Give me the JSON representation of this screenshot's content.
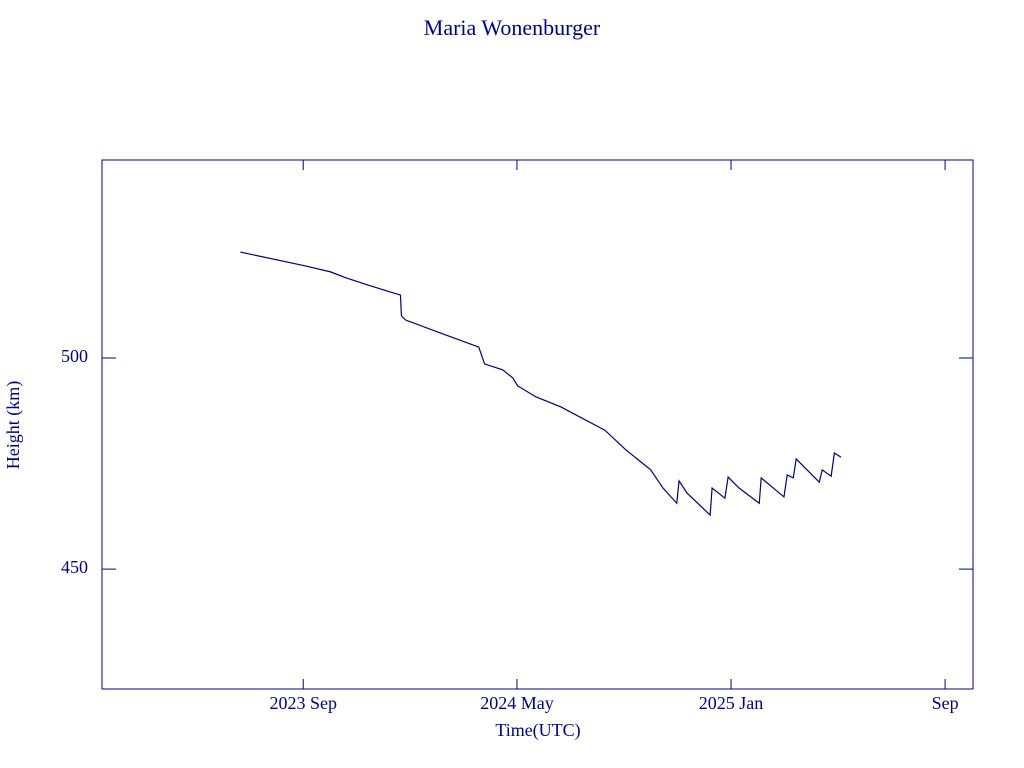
{
  "chart_data": {
    "type": "line",
    "title": "Maria Wonenburger",
    "x_label": "Time(UTC)",
    "y_label": "Height (km)",
    "x": [
      2023.471,
      2023.674,
      2023.752,
      2023.8,
      2023.876,
      2023.97,
      2023.973,
      2023.986,
      2024.095,
      2024.214,
      2024.232,
      2024.288,
      2024.32,
      2024.335,
      2024.392,
      2024.47,
      2024.607,
      2024.673,
      2024.75,
      2024.788,
      2024.831,
      2024.838,
      2024.863,
      2024.935,
      2024.941,
      2024.981,
      2024.991,
      2025.025,
      2025.088,
      2025.094,
      2025.165,
      2025.175,
      2025.194,
      2025.203,
      2025.275,
      2025.284,
      2025.312,
      2025.322,
      2025.343
    ],
    "series": [
      {
        "name": "Height",
        "color": "#000080",
        "values": [
          525.1,
          521.8,
          520.4,
          519.0,
          517.1,
          514.9,
          510.0,
          509.0,
          505.9,
          502.6,
          498.6,
          497.2,
          495.3,
          493.4,
          490.8,
          488.4,
          482.9,
          478.2,
          473.5,
          469.2,
          465.6,
          470.9,
          468.0,
          462.8,
          469.2,
          466.8,
          471.8,
          469.2,
          465.6,
          471.6,
          467.1,
          472.3,
          471.6,
          476.1,
          470.6,
          473.5,
          472.0,
          477.5,
          476.5
        ]
      }
    ],
    "xlim": [
      2023.04,
      2025.754
    ],
    "xticks": [
      {
        "value": 2023.667,
        "label": "2023 Sep"
      },
      {
        "value": 2024.333,
        "label": "2024 May"
      },
      {
        "value": 2025.0,
        "label": "2025 Jan"
      },
      {
        "value": 2025.667,
        "label": "Sep"
      }
    ],
    "ylim": [
      421.6,
      546.9
    ],
    "yticks": [
      450,
      500
    ],
    "frame_color": "#00008b"
  }
}
